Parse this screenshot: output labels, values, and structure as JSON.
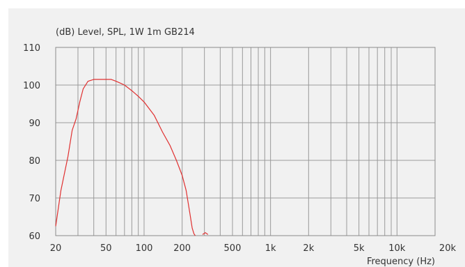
{
  "chart_data": {
    "type": "line",
    "title": "(dB)  Level, SPL, 1W 1m GB214",
    "xlabel": "Frequency  (Hz)",
    "ylabel": "",
    "xscale": "log",
    "xlim": [
      20,
      20000
    ],
    "ylim": [
      60,
      110
    ],
    "grid": true,
    "x_ticks": [
      {
        "value": 20,
        "label": "20"
      },
      {
        "value": 50,
        "label": "50"
      },
      {
        "value": 100,
        "label": "100"
      },
      {
        "value": 200,
        "label": "200"
      },
      {
        "value": 500,
        "label": "500"
      },
      {
        "value": 1000,
        "label": "1k"
      },
      {
        "value": 2000,
        "label": "2k"
      },
      {
        "value": 5000,
        "label": "5k"
      },
      {
        "value": 10000,
        "label": "10k"
      },
      {
        "value": 20000,
        "label": "20k"
      }
    ],
    "y_ticks": [
      {
        "value": 60,
        "label": "60"
      },
      {
        "value": 70,
        "label": "70"
      },
      {
        "value": 80,
        "label": "80"
      },
      {
        "value": 90,
        "label": "90"
      },
      {
        "value": 100,
        "label": "100"
      },
      {
        "value": 110,
        "label": "110"
      }
    ],
    "series": [
      {
        "color": "#e03030",
        "x": [
          20,
          22,
          25,
          27,
          29,
          31,
          33,
          36,
          40,
          45,
          50,
          55,
          60,
          65,
          70,
          80,
          90,
          100,
          120,
          140,
          160,
          180,
          200,
          215,
          230,
          240,
          248,
          254
        ],
        "y": [
          62.5,
          72,
          81,
          88,
          91,
          95.5,
          99,
          101,
          101.5,
          101.5,
          101.5,
          101.5,
          101,
          100.5,
          100,
          98.5,
          97,
          95.5,
          92,
          87.5,
          84,
          80,
          76,
          72,
          66,
          62,
          60.5,
          60
        ]
      },
      {
        "color": "#e03030",
        "x": [
          290,
          305,
          320
        ],
        "y": [
          60.3,
          60.8,
          60.3
        ]
      }
    ]
  }
}
